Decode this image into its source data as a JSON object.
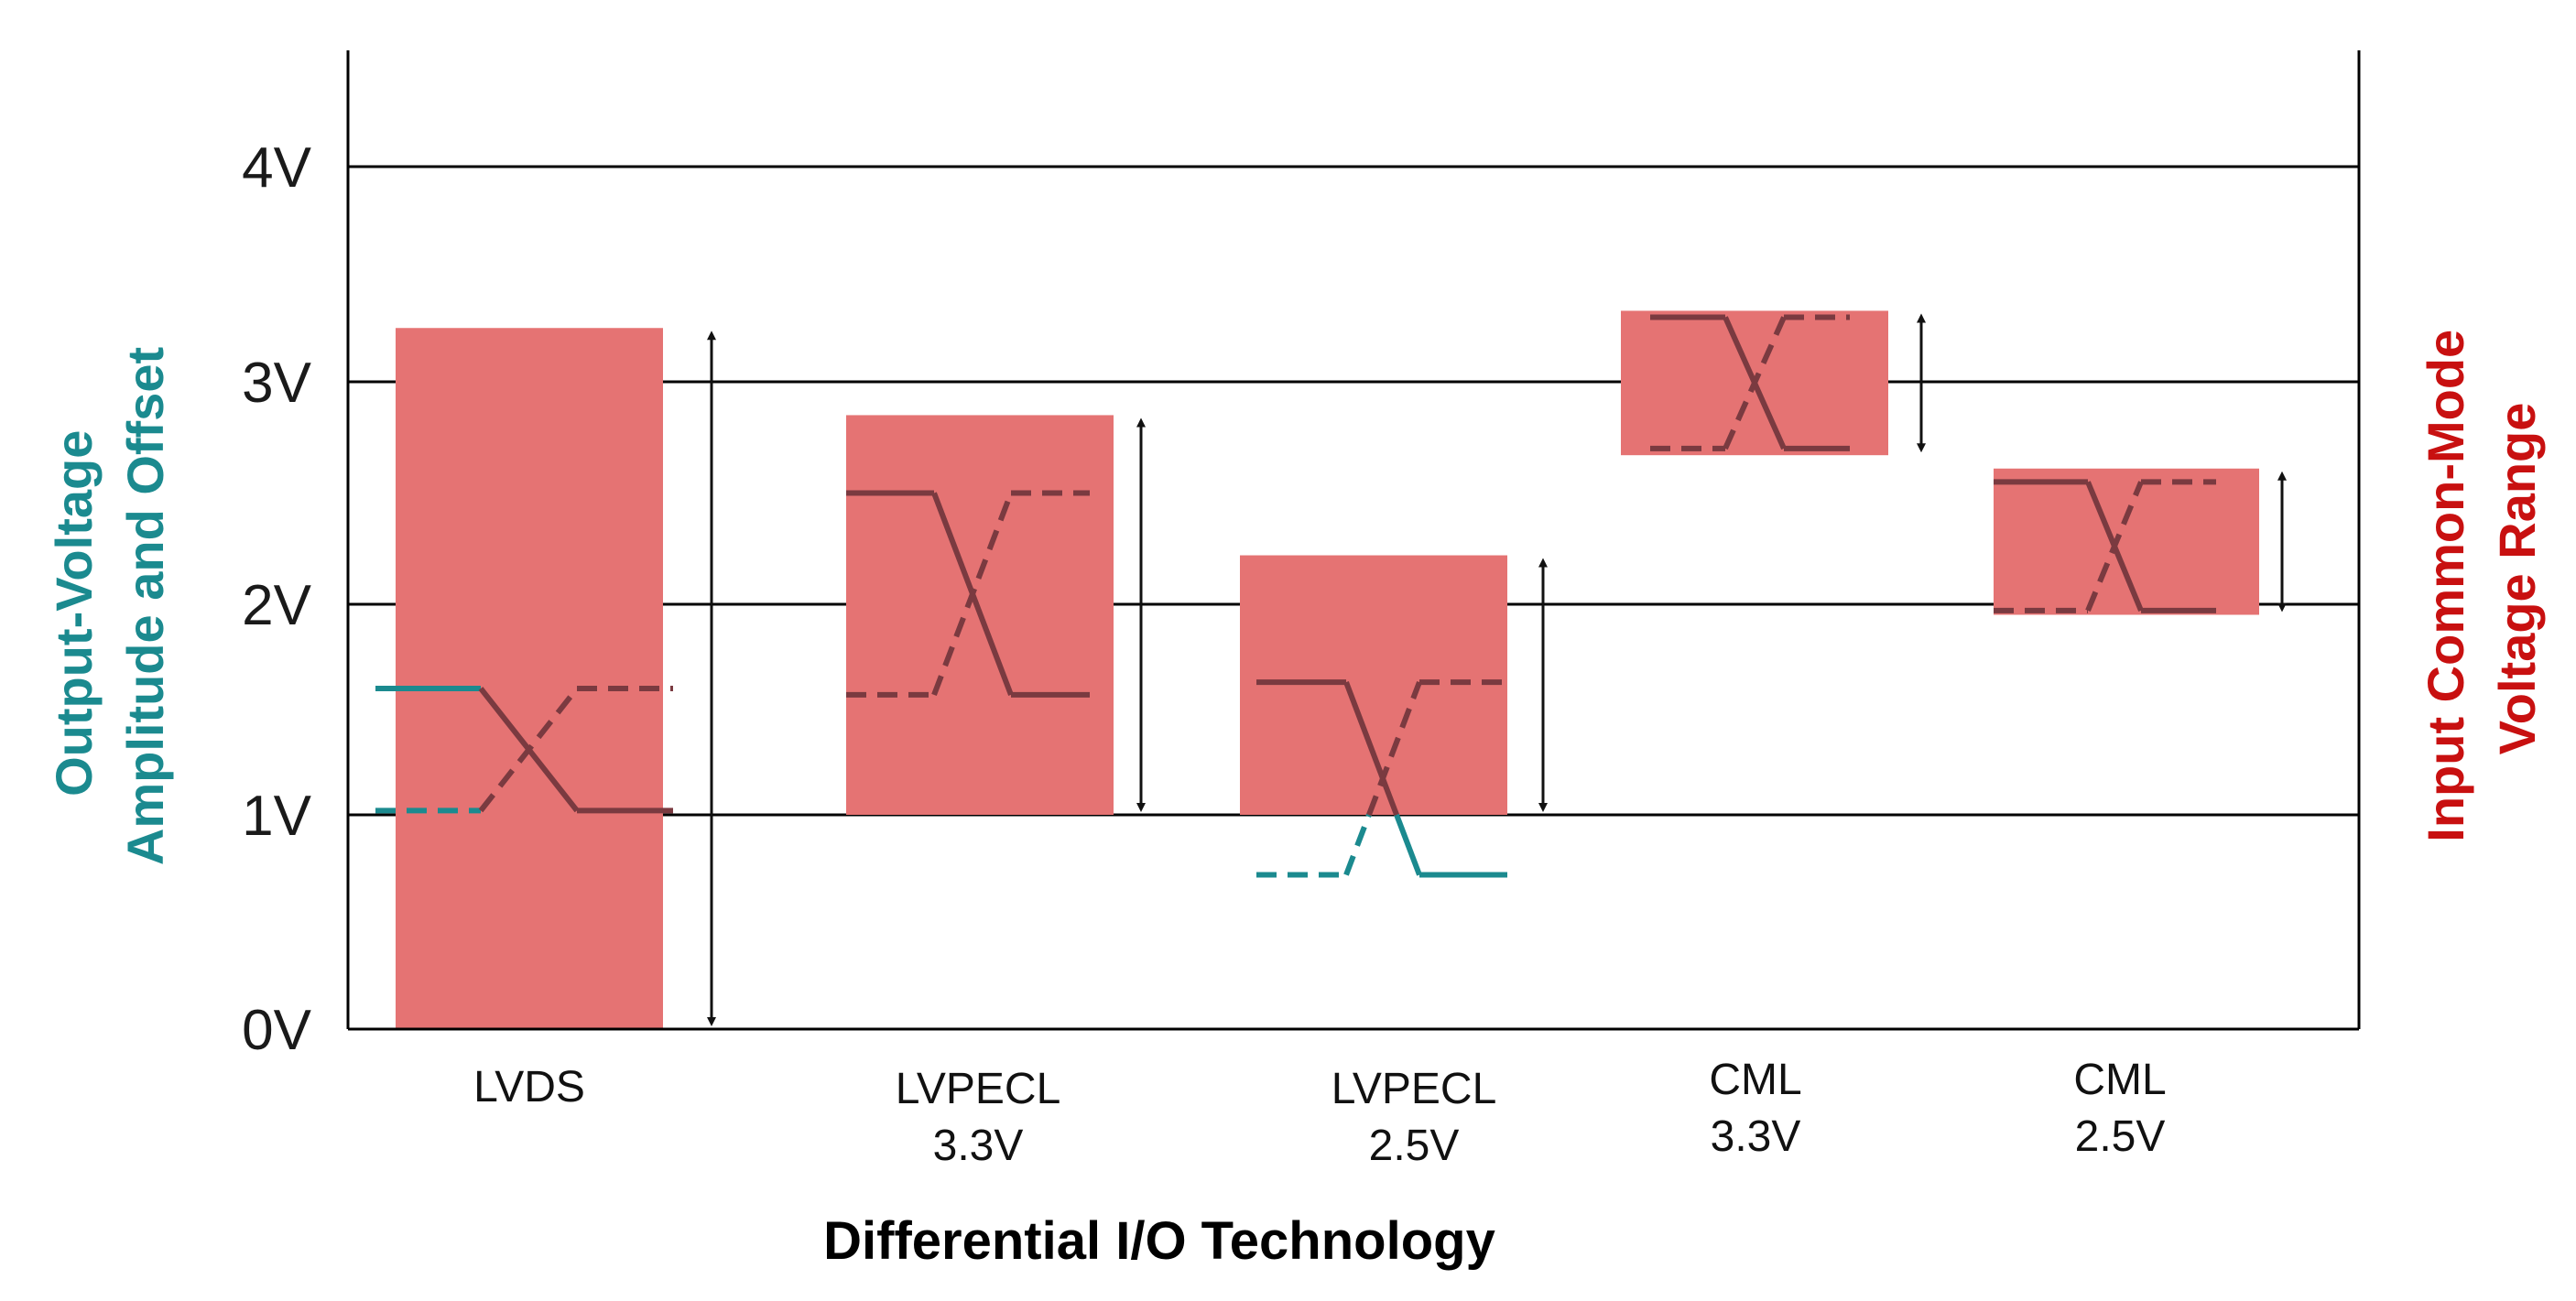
{
  "chart_data": {
    "type": "bar",
    "title": "",
    "xlabel": "Differential I/O Technology",
    "ylabel_left": [
      "Output-Voltage",
      "Amplitude and Offset"
    ],
    "ylabel_right": [
      "Input Common-Mode",
      "Voltage Range"
    ],
    "ylim": [
      0,
      4.5
    ],
    "y_ticks": [
      {
        "value": 0,
        "label": "0V"
      },
      {
        "value": 1,
        "label": "1V"
      },
      {
        "value": 2,
        "label": "2V"
      },
      {
        "value": 3,
        "label": "3V"
      },
      {
        "value": 4,
        "label": "4V"
      }
    ],
    "grid": true,
    "colors": {
      "range_fill": "#e57373",
      "signal_line": "#7a3a40",
      "out_of_range_line": "#1b8a8f",
      "left_label": "#1b8a8f",
      "right_label": "#c81010",
      "axis": "#000000"
    },
    "categories": [
      {
        "name": [
          "LVDS"
        ],
        "common_mode_range": [
          0.0,
          3.25
        ],
        "output_swing": {
          "high": 1.6,
          "low": 1.02
        }
      },
      {
        "name": [
          "LVPECL",
          "3.3V"
        ],
        "common_mode_range": [
          1.0,
          2.85
        ],
        "output_swing": {
          "high": 2.5,
          "low": 1.57
        }
      },
      {
        "name": [
          "LVPECL",
          "2.5V"
        ],
        "common_mode_range": [
          1.0,
          2.22
        ],
        "output_swing": {
          "high": 1.63,
          "low": 0.72
        }
      },
      {
        "name": [
          "CML",
          "3.3V"
        ],
        "common_mode_range": [
          2.67,
          3.33
        ],
        "output_swing": {
          "high": 3.3,
          "low": 2.7
        }
      },
      {
        "name": [
          "CML",
          "2.5V"
        ],
        "common_mode_range": [
          1.95,
          2.61
        ],
        "output_swing": {
          "high": 2.55,
          "low": 1.97
        }
      }
    ]
  }
}
